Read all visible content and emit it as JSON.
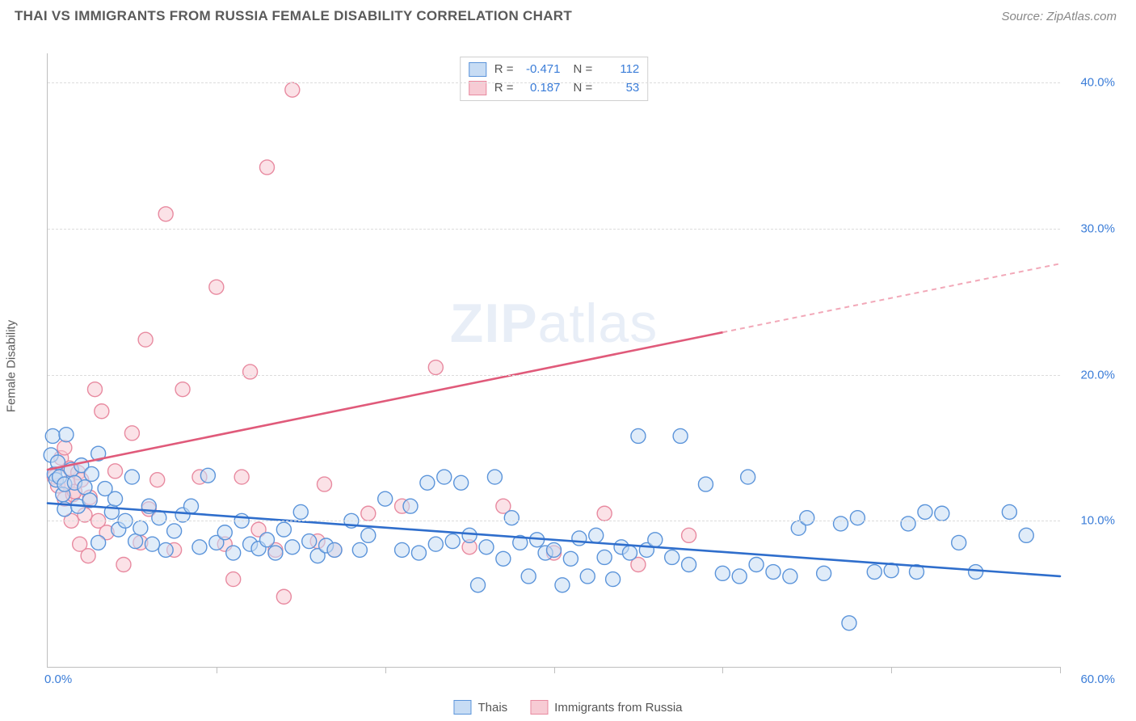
{
  "header": {
    "title": "THAI VS IMMIGRANTS FROM RUSSIA FEMALE DISABILITY CORRELATION CHART",
    "source": "Source: ZipAtlas.com"
  },
  "watermark": {
    "bold": "ZIP",
    "light": "atlas"
  },
  "chart": {
    "type": "scatter",
    "ylabel": "Female Disability",
    "xlim": [
      0,
      60
    ],
    "ylim": [
      0,
      42
    ],
    "xticks_pct": [
      0,
      10,
      20,
      30,
      40,
      50,
      60
    ],
    "yticks": [
      {
        "v": 10,
        "label": "10.0%"
      },
      {
        "v": 20,
        "label": "20.0%"
      },
      {
        "v": 30,
        "label": "30.0%"
      },
      {
        "v": 40,
        "label": "40.0%"
      }
    ],
    "x_origin_label": "0.0%",
    "x_end_label": "60.0%",
    "marker_radius": 9,
    "marker_stroke_width": 1.4,
    "line_width_main": 2.6,
    "line_width_dash": 2,
    "series": {
      "thais": {
        "label": "Thais",
        "fill": "#c7dcf4",
        "stroke": "#5b94da",
        "fill_opacity": 0.55,
        "R": "-0.471",
        "N": "112",
        "trend": {
          "x1": 0,
          "y1": 11.2,
          "x2": 60,
          "y2": 6.2,
          "color": "#2f6ecc"
        },
        "points": [
          [
            0.2,
            14.5
          ],
          [
            0.4,
            13.2
          ],
          [
            0.3,
            15.8
          ],
          [
            0.5,
            12.8
          ],
          [
            0.6,
            14.0
          ],
          [
            0.7,
            13.0
          ],
          [
            0.9,
            11.8
          ],
          [
            1.0,
            12.5
          ],
          [
            1.1,
            15.9
          ],
          [
            1.0,
            10.8
          ],
          [
            1.4,
            13.5
          ],
          [
            1.6,
            12.6
          ],
          [
            1.8,
            11.0
          ],
          [
            2.0,
            13.8
          ],
          [
            2.2,
            12.3
          ],
          [
            2.5,
            11.4
          ],
          [
            2.6,
            13.2
          ],
          [
            3.0,
            14.6
          ],
          [
            3.0,
            8.5
          ],
          [
            3.4,
            12.2
          ],
          [
            3.8,
            10.6
          ],
          [
            4.0,
            11.5
          ],
          [
            4.2,
            9.4
          ],
          [
            4.6,
            10.0
          ],
          [
            5.0,
            13.0
          ],
          [
            5.2,
            8.6
          ],
          [
            5.5,
            9.5
          ],
          [
            6.0,
            11.0
          ],
          [
            6.2,
            8.4
          ],
          [
            6.6,
            10.2
          ],
          [
            7.0,
            8.0
          ],
          [
            7.5,
            9.3
          ],
          [
            8.0,
            10.4
          ],
          [
            8.5,
            11.0
          ],
          [
            9.0,
            8.2
          ],
          [
            9.5,
            13.1
          ],
          [
            10.0,
            8.5
          ],
          [
            10.5,
            9.2
          ],
          [
            11.0,
            7.8
          ],
          [
            11.5,
            10.0
          ],
          [
            12.0,
            8.4
          ],
          [
            12.5,
            8.1
          ],
          [
            13.0,
            8.7
          ],
          [
            13.5,
            7.8
          ],
          [
            14.0,
            9.4
          ],
          [
            14.5,
            8.2
          ],
          [
            15.0,
            10.6
          ],
          [
            15.5,
            8.6
          ],
          [
            16.0,
            7.6
          ],
          [
            16.5,
            8.3
          ],
          [
            17.0,
            8.0
          ],
          [
            18.0,
            10.0
          ],
          [
            18.5,
            8.0
          ],
          [
            19.0,
            9.0
          ],
          [
            20.0,
            11.5
          ],
          [
            21.0,
            8.0
          ],
          [
            21.5,
            11.0
          ],
          [
            22.0,
            7.8
          ],
          [
            22.5,
            12.6
          ],
          [
            23.0,
            8.4
          ],
          [
            23.5,
            13.0
          ],
          [
            24.0,
            8.6
          ],
          [
            24.5,
            12.6
          ],
          [
            25.0,
            9.0
          ],
          [
            25.5,
            5.6
          ],
          [
            26.0,
            8.2
          ],
          [
            26.5,
            13.0
          ],
          [
            27.0,
            7.4
          ],
          [
            27.5,
            10.2
          ],
          [
            28.0,
            8.5
          ],
          [
            28.5,
            6.2
          ],
          [
            29.0,
            8.7
          ],
          [
            29.5,
            7.8
          ],
          [
            30.0,
            8.0
          ],
          [
            30.5,
            5.6
          ],
          [
            31.0,
            7.4
          ],
          [
            31.5,
            8.8
          ],
          [
            32.0,
            6.2
          ],
          [
            32.5,
            9.0
          ],
          [
            33.0,
            7.5
          ],
          [
            33.5,
            6.0
          ],
          [
            34.0,
            8.2
          ],
          [
            34.5,
            7.8
          ],
          [
            35.0,
            15.8
          ],
          [
            35.5,
            8.0
          ],
          [
            36.0,
            8.7
          ],
          [
            37.0,
            7.5
          ],
          [
            37.5,
            15.8
          ],
          [
            38.0,
            7.0
          ],
          [
            39.0,
            12.5
          ],
          [
            40.0,
            6.4
          ],
          [
            41.0,
            6.2
          ],
          [
            41.5,
            13.0
          ],
          [
            42.0,
            7.0
          ],
          [
            43.0,
            6.5
          ],
          [
            44.0,
            6.2
          ],
          [
            44.5,
            9.5
          ],
          [
            45.0,
            10.2
          ],
          [
            46.0,
            6.4
          ],
          [
            47.0,
            9.8
          ],
          [
            47.5,
            3.0
          ],
          [
            48.0,
            10.2
          ],
          [
            49.0,
            6.5
          ],
          [
            50.0,
            6.6
          ],
          [
            51.0,
            9.8
          ],
          [
            51.5,
            6.5
          ],
          [
            52.0,
            10.6
          ],
          [
            53.0,
            10.5
          ],
          [
            54.0,
            8.5
          ],
          [
            55.0,
            6.5
          ],
          [
            57.0,
            10.6
          ],
          [
            58.0,
            9.0
          ]
        ]
      },
      "russia": {
        "label": "Immigrants from Russia",
        "fill": "#f7cbd4",
        "stroke": "#e88aa0",
        "fill_opacity": 0.55,
        "R": "0.187",
        "N": "53",
        "trend_solid": {
          "x1": 0,
          "y1": 13.5,
          "x2": 40,
          "y2": 22.9,
          "color": "#e05a7a"
        },
        "trend_dash": {
          "x1": 40,
          "y1": 22.9,
          "x2": 60,
          "y2": 27.6,
          "color": "#f2a8b8"
        },
        "points": [
          [
            0.4,
            13.0
          ],
          [
            0.6,
            12.4
          ],
          [
            0.8,
            14.3
          ],
          [
            1.0,
            11.5
          ],
          [
            1.0,
            15.0
          ],
          [
            1.2,
            12.6
          ],
          [
            1.3,
            13.6
          ],
          [
            1.4,
            10.0
          ],
          [
            1.5,
            11.8
          ],
          [
            1.6,
            12.0
          ],
          [
            1.8,
            13.3
          ],
          [
            1.9,
            8.4
          ],
          [
            2.0,
            12.8
          ],
          [
            2.2,
            10.4
          ],
          [
            2.4,
            7.6
          ],
          [
            2.5,
            11.6
          ],
          [
            2.8,
            19.0
          ],
          [
            3.0,
            10.0
          ],
          [
            3.2,
            17.5
          ],
          [
            3.5,
            9.2
          ],
          [
            4.0,
            13.4
          ],
          [
            4.5,
            7.0
          ],
          [
            5.0,
            16.0
          ],
          [
            5.5,
            8.5
          ],
          [
            5.8,
            22.4
          ],
          [
            6.0,
            10.8
          ],
          [
            6.5,
            12.8
          ],
          [
            7.0,
            31.0
          ],
          [
            7.5,
            8.0
          ],
          [
            8.0,
            19.0
          ],
          [
            9.0,
            13.0
          ],
          [
            10.0,
            26.0
          ],
          [
            10.5,
            8.4
          ],
          [
            11.0,
            6.0
          ],
          [
            11.5,
            13.0
          ],
          [
            12.0,
            20.2
          ],
          [
            12.5,
            9.4
          ],
          [
            13.0,
            34.2
          ],
          [
            13.5,
            8.0
          ],
          [
            14.0,
            4.8
          ],
          [
            14.5,
            39.5
          ],
          [
            16.0,
            8.6
          ],
          [
            16.4,
            12.5
          ],
          [
            17.0,
            8.0
          ],
          [
            19.0,
            10.5
          ],
          [
            21.0,
            11.0
          ],
          [
            23.0,
            20.5
          ],
          [
            25.0,
            8.2
          ],
          [
            27.0,
            11.0
          ],
          [
            30.0,
            7.8
          ],
          [
            33.0,
            10.5
          ],
          [
            35.0,
            7.0
          ],
          [
            38.0,
            9.0
          ]
        ]
      }
    },
    "top_legend_labels": {
      "R": "R =",
      "N": "N ="
    }
  }
}
